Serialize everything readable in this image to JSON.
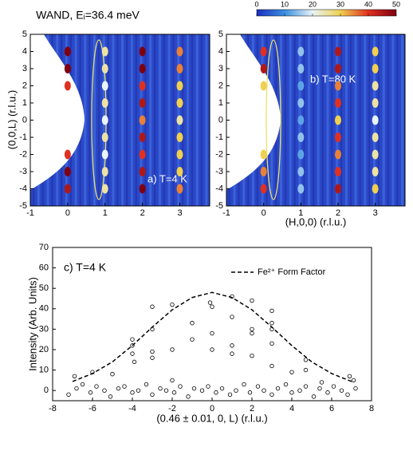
{
  "chart_data": [
    {
      "type": "heatmap",
      "title": "WAND, Eᵢ=36.4 meV",
      "ylabel": "(0,0,L) (r.l.u.)",
      "annotation": "a) T=4 K",
      "xlim": [
        -1,
        3.8
      ],
      "ylim": [
        -5,
        5
      ],
      "xticks": [
        -1,
        0,
        1,
        2,
        3
      ],
      "yticks": [
        -5,
        -4,
        -3,
        -2,
        -1,
        0,
        1,
        2,
        3,
        4,
        5
      ],
      "x": [
        0,
        0,
        0,
        0,
        0,
        0,
        1,
        1,
        1,
        1,
        1,
        1,
        1,
        1,
        1,
        2,
        2,
        2,
        2,
        2,
        2,
        2,
        2,
        2,
        3,
        3,
        3,
        3,
        3,
        3,
        3,
        3,
        3
      ],
      "y": [
        -4,
        -3,
        -2,
        2,
        3,
        4,
        -4,
        -3,
        -2,
        -1,
        0,
        1,
        2,
        3,
        4,
        -4,
        -3,
        -2,
        -1,
        0,
        1,
        2,
        3,
        4,
        -4,
        -3,
        -2,
        -1,
        0,
        1,
        2,
        3,
        4
      ],
      "values": [
        45,
        50,
        40,
        40,
        50,
        50,
        25,
        25,
        20,
        25,
        20,
        25,
        20,
        25,
        25,
        50,
        45,
        40,
        45,
        35,
        45,
        40,
        50,
        50,
        35,
        30,
        30,
        30,
        25,
        30,
        30,
        35,
        35
      ]
    },
    {
      "type": "heatmap",
      "xlabel": "(H,0,0) (r.l.u.)",
      "annotation": "b) T=80 K",
      "xlim": [
        -1,
        3.8
      ],
      "ylim": [
        -5,
        5
      ],
      "xticks": [
        -1,
        0,
        1,
        2,
        3
      ],
      "yticks": [
        -5,
        -4,
        -3,
        -2,
        -1,
        0,
        1,
        2,
        3,
        4,
        5
      ],
      "x": [
        0,
        0,
        0,
        0,
        0,
        0,
        1,
        1,
        1,
        1,
        1,
        1,
        1,
        1,
        1,
        2,
        2,
        2,
        2,
        2,
        2,
        2,
        2,
        2,
        3,
        3,
        3,
        3,
        3,
        3,
        3,
        3,
        3
      ],
      "y": [
        -4,
        -3,
        -2,
        2,
        3,
        4,
        -4,
        -3,
        -2,
        -1,
        0,
        1,
        2,
        3,
        4,
        -4,
        -3,
        -2,
        -1,
        0,
        1,
        2,
        3,
        4,
        -4,
        -3,
        -2,
        -1,
        0,
        1,
        2,
        3,
        4
      ],
      "values": [
        40,
        35,
        30,
        30,
        45,
        40,
        15,
        15,
        12,
        15,
        12,
        15,
        12,
        15,
        15,
        45,
        40,
        35,
        40,
        30,
        40,
        35,
        45,
        45,
        30,
        25,
        25,
        25,
        20,
        25,
        25,
        30,
        30
      ]
    },
    {
      "type": "colorbar",
      "xlim": [
        0,
        50
      ],
      "xticks": [
        0,
        10,
        20,
        30,
        40,
        50
      ],
      "colors": [
        "#1a2fbf",
        "#3a8fe0",
        "#e8f4f8",
        "#f0d050",
        "#e03020",
        "#800010"
      ]
    },
    {
      "type": "scatter",
      "annotation": "c) T=4 K",
      "xlabel": "(0.46 ± 0.01, 0, L) (r.l.u.)",
      "ylabel": "Intensity (Arb. Units)",
      "xlim": [
        -8,
        8
      ],
      "ylim": [
        -5,
        70
      ],
      "xticks": [
        -8,
        -6,
        -4,
        -2,
        0,
        2,
        4,
        6,
        8
      ],
      "yticks": [
        0,
        10,
        20,
        30,
        40,
        50,
        60,
        70
      ],
      "points": {
        "x": [
          -7.2,
          -6.8,
          -6.5,
          -6.1,
          -5.8,
          -5.4,
          -5.1,
          -4.7,
          -4.4,
          -4.0,
          -3.7,
          -3.3,
          -3.0,
          -2.6,
          -2.3,
          -1.9,
          -1.6,
          -1.2,
          -0.9,
          -0.5,
          -0.2,
          0.2,
          0.5,
          0.9,
          1.2,
          1.6,
          1.9,
          2.3,
          2.6,
          3.0,
          3.3,
          3.7,
          4.0,
          4.4,
          4.7,
          5.1,
          5.4,
          5.8,
          6.1,
          6.5,
          6.8,
          7.2,
          -6.9,
          -6,
          -5,
          -4,
          -4,
          -4,
          -3.9,
          -3,
          -3,
          -3,
          -3,
          -2,
          -2,
          -2,
          -1,
          -1,
          -0.1,
          0,
          0,
          0,
          1,
          1,
          1,
          1,
          2,
          2,
          2,
          2,
          3,
          3,
          3,
          3,
          3,
          4,
          4.7,
          4.7,
          5.5,
          6.9,
          7.1
        ],
        "y": [
          -2,
          1,
          3,
          -1,
          2,
          0,
          -3,
          1,
          2,
          -1,
          0,
          3,
          -2,
          1,
          0,
          -1,
          2,
          -3,
          1,
          0,
          2,
          -1,
          1,
          -2,
          0,
          3,
          -1,
          2,
          0,
          -2,
          1,
          3,
          -1,
          0,
          2,
          -3,
          1,
          -1,
          2,
          0,
          -2,
          1,
          7,
          9,
          8,
          25,
          22,
          18,
          14,
          41,
          30,
          19,
          16,
          42,
          20,
          5,
          33,
          25,
          43,
          41,
          28,
          20,
          46,
          36,
          22,
          18,
          44,
          30,
          28,
          17,
          39,
          33,
          30,
          23,
          12,
          9,
          15,
          10,
          4,
          7,
          5
        ]
      },
      "form_factor": {
        "name": "Fe²⁺ Form Factor",
        "color": "#000000",
        "x": [
          -7,
          -6,
          -5,
          -4,
          -3,
          -2,
          -1,
          0,
          1,
          2,
          3,
          4,
          5,
          6,
          7
        ],
        "values": [
          4.4,
          8.3,
          14,
          22,
          31,
          39.5,
          45.5,
          48,
          45.5,
          39.5,
          31,
          22,
          14,
          8.3,
          4.4
        ]
      }
    }
  ]
}
